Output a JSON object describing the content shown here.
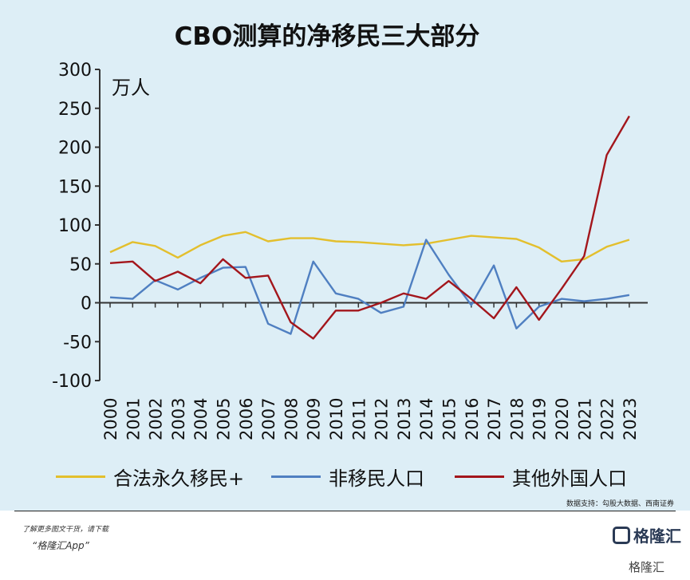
{
  "title": "CBO测算的净移民三大部分",
  "unit": "万人",
  "source": "数据支持：勾股大数据、西南证券",
  "footer": {
    "line1": "了解更多图文干货，请下载",
    "line2": "“格隆汇App”",
    "brand": "格隆汇",
    "brand_small": "格隆汇"
  },
  "colors": {
    "background": "#ddeef6",
    "legal": "#e3bf2d",
    "nonimmigrant": "#4f7fc1",
    "other": "#a3161c",
    "axis": "#333333"
  },
  "chart_data": {
    "type": "line",
    "title": "CBO测算的净移民三大部分",
    "ylabel": "万人",
    "xlabel": "",
    "ylim": [
      -100,
      300
    ],
    "yticks": [
      "300",
      "250",
      "200",
      "150",
      "100",
      "50",
      "0",
      "-50",
      "-100"
    ],
    "categories": [
      "2000",
      "2001",
      "2002",
      "2003",
      "2004",
      "2005",
      "2006",
      "2007",
      "2008",
      "2009",
      "2010",
      "2011",
      "2012",
      "2013",
      "2014",
      "2015",
      "2016",
      "2017",
      "2018",
      "2019",
      "2020",
      "2021",
      "2022",
      "2023"
    ],
    "grid": false,
    "legend_position": "bottom",
    "series": [
      {
        "name": "合法永久移民+",
        "color": "#e3bf2d",
        "values": [
          65,
          78,
          73,
          58,
          74,
          86,
          91,
          79,
          83,
          83,
          79,
          78,
          76,
          74,
          76,
          81,
          86,
          84,
          82,
          71,
          53,
          56,
          72,
          81
        ]
      },
      {
        "name": "非移民人口",
        "color": "#4f7fc1",
        "values": [
          7,
          5,
          29,
          17,
          32,
          45,
          46,
          -27,
          -40,
          53,
          12,
          5,
          -13,
          -5,
          81,
          36,
          -3,
          48,
          -33,
          -5,
          5,
          2,
          5,
          10
        ]
      },
      {
        "name": "其他外国人口",
        "color": "#a3161c",
        "values": [
          51,
          53,
          28,
          40,
          25,
          56,
          32,
          35,
          -25,
          -46,
          -10,
          -10,
          0,
          12,
          5,
          28,
          5,
          -20,
          20,
          -22,
          18,
          60,
          190,
          240
        ]
      }
    ]
  }
}
